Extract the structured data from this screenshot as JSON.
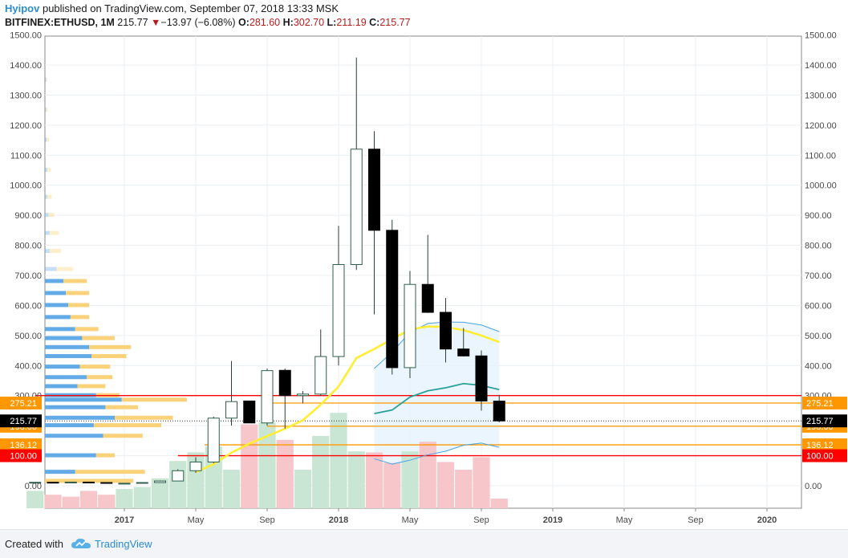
{
  "header": {
    "author": "Hyipov",
    "published_text": "published on TradingView.com, September 07, 2018 13:33 MSK",
    "symbol": "BITFINEX:ETHUSD, 1M",
    "last": "215.77",
    "arrow": "▼",
    "change": "−13.97 (−6.08%)",
    "open_label": "O:",
    "open": "281.60",
    "high_label": "H:",
    "high": "302.70",
    "low_label": "L:",
    "low": "211.19",
    "close_label": "C:",
    "close": "215.77"
  },
  "footer": {
    "created": "Created with",
    "brand": "TradingView",
    "logo_icon": "cloud-logo-icon"
  },
  "colors": {
    "up_body": "#ffffff",
    "up_border": "#2f5e4c",
    "down_body": "#000000",
    "vol_up": "#c8e6d3",
    "vol_down": "#f7c6ca",
    "sma_yellow": "#ffee33",
    "sma_teal": "#2aa198",
    "band_blue": "#4aa3df",
    "band_fill": "#e8f4fd",
    "vp_blue": "#5aa7e6",
    "vp_yellow": "#f8cd6c",
    "level_red": "#ff0000",
    "level_orange": "#ff9800"
  },
  "chart_data": {
    "type": "candlestick",
    "title": "BITFINEX:ETHUSD, 1M",
    "ylim": [
      -70,
      1500
    ],
    "yticks": [
      0,
      100,
      200,
      300,
      400,
      500,
      600,
      700,
      800,
      900,
      1000,
      1100,
      1200,
      1300,
      1400,
      1500
    ],
    "ytick_labels": [
      "0.00",
      "100.00",
      "200.00",
      "300.00",
      "400.00",
      "500.00",
      "600.00",
      "700.00",
      "800.00",
      "900.00",
      "1000.00",
      "1100.00",
      "1200.00",
      "1300.00",
      "1400.00",
      "1500.00"
    ],
    "x_tick_labels": [
      {
        "label": "2017",
        "month_index": 12,
        "bold": true
      },
      {
        "label": "May",
        "month_index": 16,
        "bold": false
      },
      {
        "label": "Sep",
        "month_index": 20,
        "bold": false
      },
      {
        "label": "2018",
        "month_index": 24,
        "bold": true
      },
      {
        "label": "May",
        "month_index": 28,
        "bold": false
      },
      {
        "label": "Sep",
        "month_index": 32,
        "bold": false
      },
      {
        "label": "2019",
        "month_index": 36,
        "bold": true
      },
      {
        "label": "May",
        "month_index": 40,
        "bold": false
      },
      {
        "label": "Sep",
        "month_index": 44,
        "bold": false
      },
      {
        "label": "2020",
        "month_index": 48,
        "bold": true
      }
    ],
    "x_first_month_index": 7,
    "x_last_month_index": 51,
    "candles": [
      {
        "m": 7,
        "o": 11.0,
        "h": 11.8,
        "l": 10.6,
        "c": 11.5
      },
      {
        "m": 8,
        "o": 11.5,
        "h": 12.4,
        "l": 10.9,
        "c": 11.2
      },
      {
        "m": 9,
        "o": 11.2,
        "h": 13.5,
        "l": 9.4,
        "c": 12.1
      },
      {
        "m": 10,
        "o": 12.1,
        "h": 12.4,
        "l": 10.3,
        "c": 10.6
      },
      {
        "m": 11,
        "o": 10.6,
        "h": 10.7,
        "l": 7.2,
        "c": 8.1
      },
      {
        "m": 12,
        "o": 8.1,
        "h": 8.6,
        "l": 7.8,
        "c": 8.3
      },
      {
        "m": 13,
        "o": 8.3,
        "h": 11.3,
        "l": 8.0,
        "c": 10.7
      },
      {
        "m": 14,
        "o": 10.7,
        "h": 16.6,
        "l": 10.2,
        "c": 15.8
      },
      {
        "m": 15,
        "o": 15.8,
        "h": 55.0,
        "l": 15.3,
        "c": 50.0
      },
      {
        "m": 16,
        "o": 50.0,
        "h": 95.0,
        "l": 43.0,
        "c": 79.0
      },
      {
        "m": 17,
        "o": 79.0,
        "h": 230.0,
        "l": 75.0,
        "c": 225.0
      },
      {
        "m": 18,
        "o": 225.0,
        "h": 415.0,
        "l": 200.0,
        "c": 280.0
      },
      {
        "m": 19,
        "o": 282.0,
        "h": 283.0,
        "l": 216.0,
        "c": 209.0
      },
      {
        "m": 20,
        "o": 209.0,
        "h": 390.0,
        "l": 200.0,
        "c": 383.0
      },
      {
        "m": 21,
        "o": 384.0,
        "h": 390.0,
        "l": 190.0,
        "c": 300.0
      },
      {
        "m": 22,
        "o": 300.0,
        "h": 315.0,
        "l": 275.0,
        "c": 305.0
      },
      {
        "m": 23,
        "o": 305.0,
        "h": 520.0,
        "l": 300.0,
        "c": 430.0
      },
      {
        "m": 24,
        "o": 430.0,
        "h": 865.0,
        "l": 400.0,
        "c": 736.0
      },
      {
        "m": 25,
        "o": 736.0,
        "h": 1425.0,
        "l": 718.0,
        "c": 1120.0
      },
      {
        "m": 26,
        "o": 1120.0,
        "h": 1180.0,
        "l": 570.0,
        "c": 850.0
      },
      {
        "m": 27,
        "o": 850.0,
        "h": 885.0,
        "l": 370.0,
        "c": 393.0
      },
      {
        "m": 28,
        "o": 393.0,
        "h": 715.0,
        "l": 358.0,
        "c": 670.0
      },
      {
        "m": 29,
        "o": 670.0,
        "h": 835.0,
        "l": 575.0,
        "c": 577.0
      },
      {
        "m": 30,
        "o": 577.0,
        "h": 625.0,
        "l": 410.0,
        "c": 455.0
      },
      {
        "m": 31,
        "o": 455.0,
        "h": 525.0,
        "l": 430.0,
        "c": 432.0
      },
      {
        "m": 32,
        "o": 432.0,
        "h": 450.0,
        "l": 250.0,
        "c": 282.0
      },
      {
        "m": 33,
        "o": 281.6,
        "h": 302.7,
        "l": 211.19,
        "c": 215.77
      }
    ],
    "volume": [
      {
        "m": 7,
        "v": 0.18,
        "up": true
      },
      {
        "m": 8,
        "v": 0.14,
        "up": false
      },
      {
        "m": 9,
        "v": 0.12,
        "up": false
      },
      {
        "m": 10,
        "v": 0.18,
        "up": false
      },
      {
        "m": 11,
        "v": 0.14,
        "up": false
      },
      {
        "m": 12,
        "v": 0.2,
        "up": true
      },
      {
        "m": 13,
        "v": 0.22,
        "up": true
      },
      {
        "m": 14,
        "v": 0.31,
        "up": true
      },
      {
        "m": 15,
        "v": 0.49,
        "up": true
      },
      {
        "m": 16,
        "v": 0.58,
        "up": true
      },
      {
        "m": 17,
        "v": 0.64,
        "up": true
      },
      {
        "m": 18,
        "v": 0.4,
        "up": true
      },
      {
        "m": 19,
        "v": 0.87,
        "up": false
      },
      {
        "m": 20,
        "v": 0.89,
        "up": true
      },
      {
        "m": 21,
        "v": 0.71,
        "up": false
      },
      {
        "m": 22,
        "v": 0.4,
        "up": true
      },
      {
        "m": 23,
        "v": 0.75,
        "up": true
      },
      {
        "m": 24,
        "v": 0.99,
        "up": true
      },
      {
        "m": 25,
        "v": 0.59,
        "up": true
      },
      {
        "m": 26,
        "v": 0.58,
        "up": false
      },
      {
        "m": 27,
        "v": 0.47,
        "up": false
      },
      {
        "m": 28,
        "v": 0.59,
        "up": true
      },
      {
        "m": 29,
        "v": 0.69,
        "up": false
      },
      {
        "m": 30,
        "v": 0.48,
        "up": false
      },
      {
        "m": 31,
        "v": 0.4,
        "up": false
      },
      {
        "m": 32,
        "v": 0.53,
        "up": false
      },
      {
        "m": 33,
        "v": 0.1,
        "up": false
      }
    ],
    "sma_yellow": [
      {
        "m": 16,
        "y": 45
      },
      {
        "m": 17,
        "y": 72
      },
      {
        "m": 18,
        "y": 110
      },
      {
        "m": 19,
        "y": 140
      },
      {
        "m": 20,
        "y": 165
      },
      {
        "m": 21,
        "y": 190
      },
      {
        "m": 22,
        "y": 218
      },
      {
        "m": 23,
        "y": 270
      },
      {
        "m": 24,
        "y": 330
      },
      {
        "m": 25,
        "y": 425
      },
      {
        "m": 26,
        "y": 455
      },
      {
        "m": 27,
        "y": 488
      },
      {
        "m": 28,
        "y": 520
      },
      {
        "m": 29,
        "y": 530
      },
      {
        "m": 30,
        "y": 528
      },
      {
        "m": 31,
        "y": 518
      },
      {
        "m": 32,
        "y": 500
      },
      {
        "m": 33,
        "y": 478
      }
    ],
    "sma_teal": [
      {
        "m": 26,
        "y": 240
      },
      {
        "m": 27,
        "y": 252
      },
      {
        "m": 28,
        "y": 295
      },
      {
        "m": 29,
        "y": 316
      },
      {
        "m": 30,
        "y": 326
      },
      {
        "m": 31,
        "y": 340
      },
      {
        "m": 32,
        "y": 334
      },
      {
        "m": 33,
        "y": 320
      }
    ],
    "band_upper": [
      {
        "m": 26,
        "y": 390
      },
      {
        "m": 27,
        "y": 445
      },
      {
        "m": 28,
        "y": 510
      },
      {
        "m": 29,
        "y": 540
      },
      {
        "m": 30,
        "y": 545
      },
      {
        "m": 31,
        "y": 544
      },
      {
        "m": 32,
        "y": 535
      },
      {
        "m": 33,
        "y": 513
      }
    ],
    "band_lower": [
      {
        "m": 26,
        "y": 90
      },
      {
        "m": 27,
        "y": 72
      },
      {
        "m": 28,
        "y": 85
      },
      {
        "m": 29,
        "y": 103
      },
      {
        "m": 30,
        "y": 115
      },
      {
        "m": 31,
        "y": 135
      },
      {
        "m": 32,
        "y": 142
      },
      {
        "m": 33,
        "y": 128
      }
    ],
    "volume_profile": [
      {
        "p": 15,
        "a": 0.0,
        "b": 0.76
      },
      {
        "p": 45,
        "a": 0.26,
        "b": 0.6
      },
      {
        "p": 100,
        "a": 0.44,
        "b": 0.16
      },
      {
        "p": 165,
        "a": 0.5,
        "b": 0.34
      },
      {
        "p": 200,
        "a": 0.42,
        "b": 0.58
      },
      {
        "p": 225,
        "a": 0.6,
        "b": 0.5
      },
      {
        "p": 260,
        "a": 0.52,
        "b": 0.28
      },
      {
        "p": 285,
        "a": 0.66,
        "b": 0.56
      },
      {
        "p": 300,
        "a": 0.44,
        "b": 0.2
      },
      {
        "p": 330,
        "a": 0.28,
        "b": 0.24
      },
      {
        "p": 360,
        "a": 0.36,
        "b": 0.22
      },
      {
        "p": 395,
        "a": 0.3,
        "b": 0.26
      },
      {
        "p": 430,
        "a": 0.4,
        "b": 0.3
      },
      {
        "p": 460,
        "a": 0.38,
        "b": 0.36
      },
      {
        "p": 490,
        "a": 0.32,
        "b": 0.28
      },
      {
        "p": 520,
        "a": 0.26,
        "b": 0.2
      },
      {
        "p": 560,
        "a": 0.22,
        "b": 0.16
      },
      {
        "p": 600,
        "a": 0.2,
        "b": 0.18
      },
      {
        "p": 640,
        "a": 0.18,
        "b": 0.2
      },
      {
        "p": 680,
        "a": 0.16,
        "b": 0.2
      },
      {
        "p": 720,
        "a": 0.1,
        "b": 0.14
      },
      {
        "p": 780,
        "a": 0.04,
        "b": 0.1
      },
      {
        "p": 840,
        "a": 0.04,
        "b": 0.08
      },
      {
        "p": 900,
        "a": 0.03,
        "b": 0.05
      },
      {
        "p": 960,
        "a": 0.02,
        "b": 0.04
      },
      {
        "p": 1050,
        "a": 0.02,
        "b": 0.03
      },
      {
        "p": 1150,
        "a": 0.015,
        "b": 0.02
      },
      {
        "p": 1250,
        "a": 0.01,
        "b": 0.015
      },
      {
        "p": 1350,
        "a": 0.01,
        "b": 0.01
      }
    ],
    "levels": [
      {
        "price": 300.0,
        "color": "#ff0000",
        "start_m": 7,
        "label": ""
      },
      {
        "price": 275.21,
        "color": "#ff9800",
        "start_m": 20,
        "label": "275.21"
      },
      {
        "price": 198.0,
        "color": "#ff9800",
        "start_m": 20,
        "label": "198.00"
      },
      {
        "price": 136.12,
        "color": "#ff9800",
        "start_m": 16.5,
        "label": "136.12"
      },
      {
        "price": 100.0,
        "color": "#ff0000",
        "start_m": 15,
        "label": "100.00"
      }
    ],
    "last_price": {
      "price": 215.77,
      "label": "215.77"
    },
    "legend": "none",
    "grid": true
  }
}
